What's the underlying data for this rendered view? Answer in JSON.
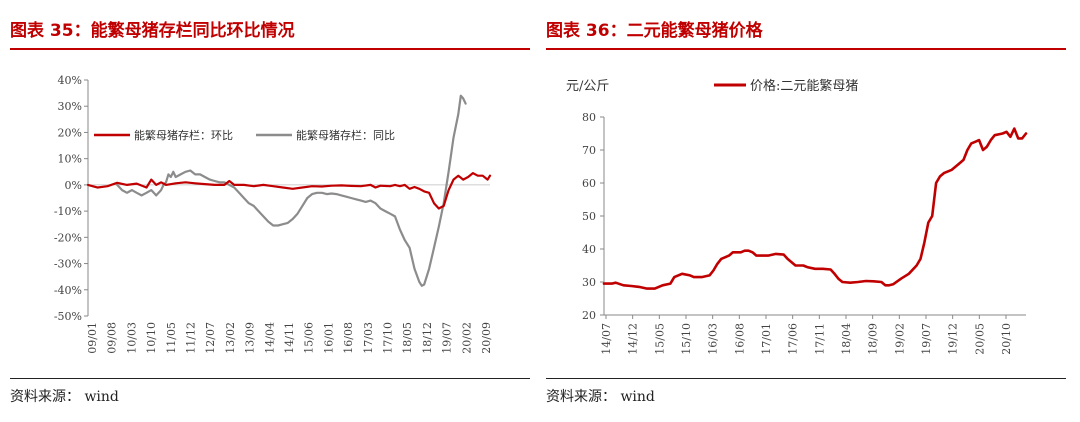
{
  "left": {
    "title": "图表 35：能繁母猪存栏同比环比情况",
    "source": "资料来源： wind",
    "chart_data": {
      "type": "line",
      "ylim": [
        -50,
        40
      ],
      "y_ticks": [
        40,
        30,
        20,
        10,
        0,
        -10,
        -20,
        -30,
        -40,
        -50
      ],
      "y_tick_labels": [
        "40%",
        "30%",
        "20%",
        "10%",
        "0%",
        "-10%",
        "-20%",
        "-30%",
        "-40%",
        "-50%"
      ],
      "x_tick_labels": [
        "09/01",
        "09/08",
        "10/03",
        "10/10",
        "11/05",
        "11/12",
        "12/07",
        "13/02",
        "13/09",
        "14/04",
        "14/11",
        "15/06",
        "16/01",
        "16/08",
        "17/03",
        "17/10",
        "18/05",
        "18/12",
        "19/07",
        "20/02",
        "20/09"
      ],
      "legend": {
        "placement": "top-left"
      },
      "colors": {
        "mom": "#c00000",
        "yoy": "#8c8c8c"
      },
      "series": [
        {
          "name": "能繁母猪存栏：环比",
          "key": "mom",
          "points": [
            [
              0,
              0
            ],
            [
              4,
              -1
            ],
            [
              8,
              -0.5
            ],
            [
              12,
              0.8
            ],
            [
              16,
              0
            ],
            [
              20,
              0.5
            ],
            [
              24,
              -1
            ],
            [
              26,
              2
            ],
            [
              28,
              0
            ],
            [
              30,
              1
            ],
            [
              32,
              0
            ],
            [
              36,
              0.6
            ],
            [
              40,
              1
            ],
            [
              44,
              0.6
            ],
            [
              48,
              0.3
            ],
            [
              52,
              0
            ],
            [
              56,
              0
            ],
            [
              58,
              1.5
            ],
            [
              60,
              0
            ],
            [
              64,
              0
            ],
            [
              68,
              -0.5
            ],
            [
              72,
              0
            ],
            [
              76,
              -0.5
            ],
            [
              80,
              -1
            ],
            [
              84,
              -1.5
            ],
            [
              88,
              -1
            ],
            [
              92,
              -0.5
            ],
            [
              96,
              -0.6
            ],
            [
              100,
              -0.3
            ],
            [
              104,
              -0.2
            ],
            [
              108,
              -0.4
            ],
            [
              112,
              -0.5
            ],
            [
              116,
              0
            ],
            [
              118,
              -1
            ],
            [
              120,
              -0.3
            ],
            [
              124,
              -0.5
            ],
            [
              126,
              0
            ],
            [
              128,
              -0.5
            ],
            [
              130,
              0
            ],
            [
              132,
              -1.5
            ],
            [
              134,
              -0.8
            ],
            [
              136,
              -1.5
            ],
            [
              138,
              -2.5
            ],
            [
              140,
              -3
            ],
            [
              142,
              -7
            ],
            [
              144,
              -9
            ],
            [
              146,
              -8
            ],
            [
              148,
              -2
            ],
            [
              150,
              2
            ],
            [
              152,
              3.5
            ],
            [
              154,
              2
            ],
            [
              156,
              3
            ],
            [
              158,
              4.5
            ],
            [
              160,
              3.5
            ],
            [
              162,
              3.5
            ],
            [
              164,
              2
            ],
            [
              165,
              3.5
            ]
          ]
        },
        {
          "name": "能繁母猪存栏：同比",
          "key": "yoy",
          "points": [
            [
              12,
              0
            ],
            [
              14,
              -2
            ],
            [
              16,
              -3
            ],
            [
              18,
              -2
            ],
            [
              20,
              -3
            ],
            [
              22,
              -4
            ],
            [
              24,
              -3
            ],
            [
              26,
              -2
            ],
            [
              28,
              -4
            ],
            [
              30,
              -2
            ],
            [
              31,
              0
            ],
            [
              32,
              1
            ],
            [
              33,
              4
            ],
            [
              34,
              3
            ],
            [
              35,
              5
            ],
            [
              36,
              3
            ],
            [
              38,
              4
            ],
            [
              40,
              5
            ],
            [
              42,
              5.5
            ],
            [
              44,
              4
            ],
            [
              46,
              4
            ],
            [
              48,
              3
            ],
            [
              50,
              2
            ],
            [
              52,
              1.5
            ],
            [
              54,
              1
            ],
            [
              56,
              1
            ],
            [
              58,
              0
            ],
            [
              60,
              -1
            ],
            [
              62,
              -3
            ],
            [
              64,
              -5
            ],
            [
              66,
              -7
            ],
            [
              68,
              -8
            ],
            [
              70,
              -10
            ],
            [
              72,
              -12
            ],
            [
              74,
              -14
            ],
            [
              76,
              -15.5
            ],
            [
              78,
              -15.5
            ],
            [
              80,
              -15
            ],
            [
              82,
              -14.5
            ],
            [
              84,
              -13
            ],
            [
              86,
              -11
            ],
            [
              88,
              -8
            ],
            [
              90,
              -5
            ],
            [
              92,
              -3.5
            ],
            [
              94,
              -3
            ],
            [
              96,
              -3
            ],
            [
              98,
              -3.5
            ],
            [
              100,
              -3.3
            ],
            [
              102,
              -3.5
            ],
            [
              104,
              -4
            ],
            [
              106,
              -4.5
            ],
            [
              108,
              -5
            ],
            [
              110,
              -5.5
            ],
            [
              112,
              -6
            ],
            [
              114,
              -6.5
            ],
            [
              116,
              -6
            ],
            [
              118,
              -7
            ],
            [
              120,
              -9
            ],
            [
              122,
              -10
            ],
            [
              124,
              -11
            ],
            [
              126,
              -12
            ],
            [
              128,
              -17
            ],
            [
              130,
              -21
            ],
            [
              132,
              -24
            ],
            [
              134,
              -32
            ],
            [
              136,
              -37
            ],
            [
              137,
              -38.5
            ],
            [
              138,
              -38
            ],
            [
              140,
              -32
            ],
            [
              142,
              -24
            ],
            [
              144,
              -16
            ],
            [
              146,
              -7
            ],
            [
              148,
              5
            ],
            [
              150,
              18
            ],
            [
              152,
              27
            ],
            [
              153,
              34
            ],
            [
              154,
              33
            ],
            [
              155,
              31
            ]
          ]
        }
      ]
    }
  },
  "right": {
    "title": "图表 36：二元能繁母猪价格",
    "source": "资料来源： wind",
    "chart_data": {
      "type": "line",
      "ylabel": "元/公斤",
      "ylim": [
        20,
        80
      ],
      "y_ticks": [
        80,
        70,
        60,
        50,
        40,
        30,
        20
      ],
      "x_tick_labels": [
        "14/07",
        "14/12",
        "15/05",
        "15/10",
        "16/03",
        "16/08",
        "17/01",
        "17/06",
        "17/11",
        "18/04",
        "18/09",
        "19/02",
        "19/07",
        "19/12",
        "20/05",
        "20/10"
      ],
      "legend": {
        "placement": "top-center"
      },
      "colors": {
        "price": "#c00000"
      },
      "series": [
        {
          "name": "价格:二元能繁母猪",
          "key": "price",
          "points": [
            [
              0,
              29.5
            ],
            [
              2,
              29.5
            ],
            [
              3,
              29.8
            ],
            [
              5,
              29
            ],
            [
              7,
              28.8
            ],
            [
              9,
              28.5
            ],
            [
              11,
              28
            ],
            [
              13,
              28
            ],
            [
              15,
              29
            ],
            [
              17,
              29.5
            ],
            [
              18,
              31.5
            ],
            [
              20,
              32.5
            ],
            [
              22,
              32
            ],
            [
              23,
              31.5
            ],
            [
              25,
              31.5
            ],
            [
              27,
              32
            ],
            [
              28,
              33.5
            ],
            [
              29,
              35.5
            ],
            [
              30,
              37
            ],
            [
              32,
              38
            ],
            [
              33,
              39
            ],
            [
              35,
              39
            ],
            [
              36,
              39.5
            ],
            [
              37,
              39.5
            ],
            [
              38,
              39
            ],
            [
              39,
              38
            ],
            [
              40,
              38
            ],
            [
              42,
              38
            ],
            [
              44,
              38.5
            ],
            [
              46,
              38.3
            ],
            [
              47,
              37
            ],
            [
              48,
              36
            ],
            [
              49,
              35
            ],
            [
              51,
              35
            ],
            [
              52,
              34.5
            ],
            [
              54,
              34
            ],
            [
              56,
              34
            ],
            [
              58,
              33.8
            ],
            [
              59,
              32.5
            ],
            [
              60,
              31
            ],
            [
              61,
              30
            ],
            [
              63,
              29.8
            ],
            [
              65,
              30
            ],
            [
              67,
              30.3
            ],
            [
              69,
              30.2
            ],
            [
              71,
              30
            ],
            [
              72,
              29
            ],
            [
              73,
              29
            ],
            [
              74,
              29.3
            ],
            [
              76,
              31
            ],
            [
              78,
              32.5
            ],
            [
              80,
              35
            ],
            [
              81,
              37
            ],
            [
              82,
              42
            ],
            [
              83,
              48
            ],
            [
              84,
              50
            ],
            [
              85,
              60
            ],
            [
              86,
              62
            ],
            [
              87,
              63
            ],
            [
              88,
              63.5
            ],
            [
              89,
              64
            ],
            [
              90,
              65
            ],
            [
              91,
              66
            ],
            [
              92,
              67
            ],
            [
              93,
              70
            ],
            [
              94,
              72
            ],
            [
              95,
              72.5
            ],
            [
              96,
              73
            ],
            [
              97,
              70
            ],
            [
              98,
              71
            ],
            [
              99,
              73
            ],
            [
              100,
              74.5
            ],
            [
              102,
              75
            ],
            [
              103,
              75.5
            ],
            [
              104,
              74
            ],
            [
              105,
              76.5
            ],
            [
              106,
              73.5
            ],
            [
              107,
              73.5
            ],
            [
              108,
              75
            ]
          ]
        }
      ]
    }
  }
}
